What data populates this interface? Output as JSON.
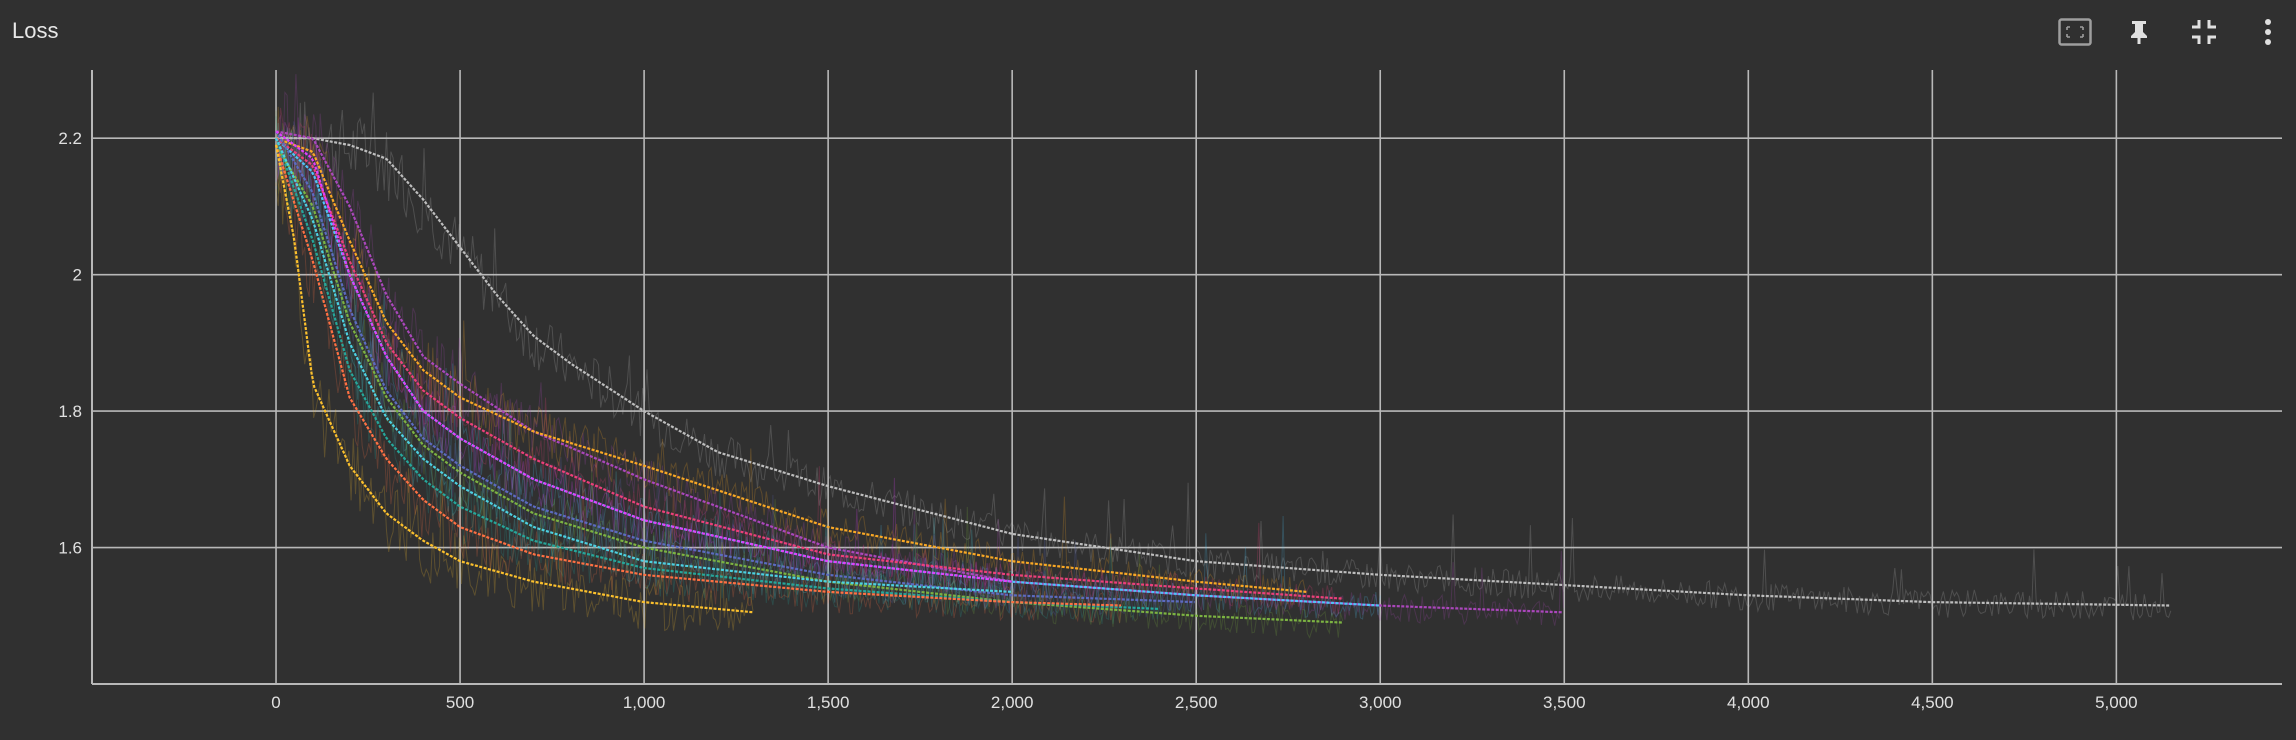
{
  "card": {
    "title": "Loss"
  },
  "toolbar": {
    "icons": [
      "fit-domain-icon",
      "pin-icon",
      "collapse-icon",
      "more-vert-icon"
    ]
  },
  "colors": {
    "background": "#303030",
    "grid": "#b8b8b8",
    "text": "#e0e0e0"
  },
  "chart_data": {
    "type": "line",
    "title": "Loss",
    "xlabel": "",
    "ylabel": "",
    "xlim": [
      -500,
      5450
    ],
    "ylim": [
      1.4,
      2.3
    ],
    "grid": true,
    "x_ticks": [
      "0",
      "500",
      "1,000",
      "1,500",
      "2,000",
      "2,500",
      "3,000",
      "3,500",
      "4,000",
      "4,500",
      "5,000"
    ],
    "x_tick_values": [
      0,
      500,
      1000,
      1500,
      2000,
      2500,
      3000,
      3500,
      4000,
      4500,
      5000
    ],
    "y_ticks": [
      "1.6",
      "1.8",
      "2",
      "2.2"
    ],
    "y_tick_values": [
      1.6,
      1.8,
      2.0,
      2.2
    ],
    "series": [
      {
        "color": "#bdbdbd",
        "x": [
          0,
          100,
          200,
          300,
          400,
          500,
          600,
          700,
          800,
          1000,
          1200,
          1500,
          2000,
          2500,
          3000,
          3500,
          4000,
          4500,
          5150
        ],
        "y": [
          2.2,
          2.2,
          2.19,
          2.17,
          2.11,
          2.04,
          1.97,
          1.91,
          1.87,
          1.8,
          1.74,
          1.69,
          1.62,
          1.58,
          1.56,
          1.545,
          1.53,
          1.52,
          1.515
        ]
      },
      {
        "color": "#ab47bc",
        "x": [
          0,
          100,
          200,
          300,
          400,
          500,
          700,
          1000,
          1500,
          2000,
          2500,
          3000,
          3500
        ],
        "y": [
          2.21,
          2.2,
          2.1,
          1.97,
          1.88,
          1.84,
          1.77,
          1.7,
          1.6,
          1.55,
          1.53,
          1.515,
          1.505
        ]
      },
      {
        "color": "#f9a825",
        "x": [
          0,
          100,
          200,
          300,
          400,
          500,
          700,
          1000,
          1500,
          2000,
          2500,
          2800
        ],
        "y": [
          2.2,
          2.18,
          2.05,
          1.93,
          1.86,
          1.82,
          1.77,
          1.72,
          1.63,
          1.58,
          1.55,
          1.535
        ]
      },
      {
        "color": "#4fc3f7",
        "x": [
          0,
          100,
          200,
          300,
          400,
          500,
          700,
          1000,
          1500,
          2000,
          2500,
          3000
        ],
        "y": [
          2.2,
          2.15,
          2.0,
          1.88,
          1.8,
          1.76,
          1.7,
          1.64,
          1.58,
          1.55,
          1.53,
          1.515
        ]
      },
      {
        "color": "#ec407a",
        "x": [
          0,
          100,
          200,
          300,
          400,
          500,
          700,
          1000,
          1500,
          2000,
          2500,
          2900
        ],
        "y": [
          2.2,
          2.16,
          2.02,
          1.9,
          1.83,
          1.79,
          1.73,
          1.66,
          1.59,
          1.56,
          1.54,
          1.525
        ]
      },
      {
        "color": "#7cb342",
        "x": [
          0,
          100,
          200,
          300,
          400,
          500,
          700,
          1000,
          1500,
          2000,
          2500,
          2900
        ],
        "y": [
          2.19,
          2.1,
          1.93,
          1.82,
          1.75,
          1.71,
          1.65,
          1.6,
          1.55,
          1.52,
          1.5,
          1.49
        ]
      },
      {
        "color": "#26a69a",
        "x": [
          0,
          100,
          200,
          300,
          400,
          500,
          700,
          1000,
          1500,
          2000,
          2400
        ],
        "y": [
          2.2,
          2.05,
          1.86,
          1.76,
          1.7,
          1.66,
          1.61,
          1.57,
          1.54,
          1.52,
          1.51
        ]
      },
      {
        "color": "#ff7043",
        "x": [
          0,
          100,
          200,
          300,
          400,
          500,
          700,
          1000,
          1500,
          2000,
          2300
        ],
        "y": [
          2.19,
          2.02,
          1.82,
          1.73,
          1.67,
          1.63,
          1.59,
          1.56,
          1.535,
          1.52,
          1.515
        ]
      },
      {
        "color": "#fbc02d",
        "x": [
          0,
          50,
          100,
          200,
          300,
          400,
          500,
          700,
          1000,
          1300
        ],
        "y": [
          2.19,
          2.05,
          1.84,
          1.72,
          1.65,
          1.61,
          1.58,
          1.55,
          1.52,
          1.505
        ]
      },
      {
        "color": "#5c6bc0",
        "x": [
          0,
          100,
          200,
          300,
          400,
          500,
          700,
          1000,
          1500,
          2000,
          2500
        ],
        "y": [
          2.21,
          2.12,
          1.95,
          1.83,
          1.76,
          1.72,
          1.66,
          1.61,
          1.56,
          1.53,
          1.52
        ]
      },
      {
        "color": "#e040fb",
        "x": [
          0,
          100,
          200,
          300,
          400,
          500,
          700,
          1000,
          1500,
          2000
        ],
        "y": [
          2.21,
          2.17,
          2.0,
          1.88,
          1.8,
          1.76,
          1.7,
          1.64,
          1.58,
          1.55
        ]
      },
      {
        "color": "#4dd0e1",
        "x": [
          0,
          100,
          200,
          300,
          400,
          500,
          700,
          1000,
          1500,
          2000
        ],
        "y": [
          2.2,
          2.08,
          1.9,
          1.79,
          1.73,
          1.69,
          1.63,
          1.58,
          1.55,
          1.535
        ]
      }
    ]
  }
}
